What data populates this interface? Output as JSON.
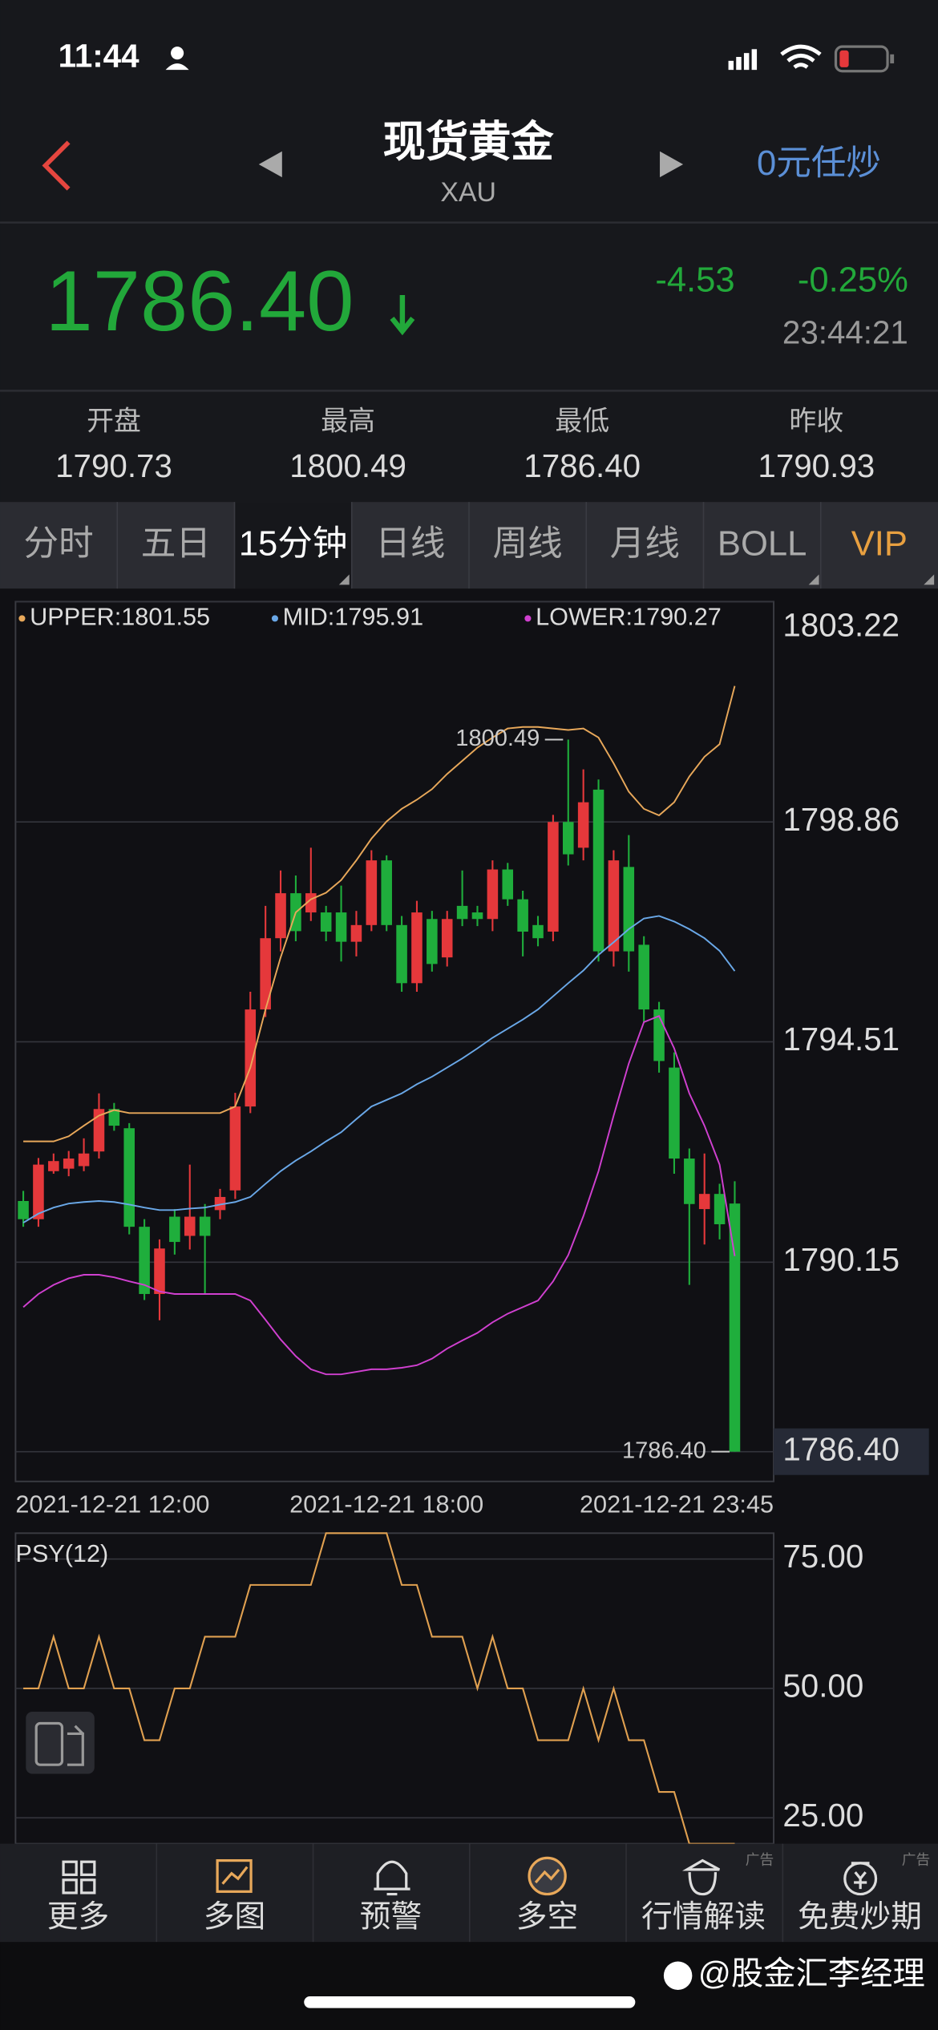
{
  "status_bar": {
    "time": "11:44"
  },
  "header": {
    "title": "现货黄金",
    "subtitle": "XAU",
    "action": "0元任炒"
  },
  "quote": {
    "price": "1786.40",
    "change": "-4.53",
    "change_pct": "-0.25%",
    "time": "23:44:21"
  },
  "stats": [
    {
      "label": "开盘",
      "value": "1790.73"
    },
    {
      "label": "最高",
      "value": "1800.49"
    },
    {
      "label": "最低",
      "value": "1786.40"
    },
    {
      "label": "昨收",
      "value": "1790.93"
    }
  ],
  "tabs": [
    "分时",
    "五日",
    "15分钟",
    "日线",
    "周线",
    "月线",
    "BOLL",
    "VIP"
  ],
  "active_tab": 2,
  "toolbar": [
    {
      "label": "更多"
    },
    {
      "label": "多图"
    },
    {
      "label": "预警"
    },
    {
      "label": "多空"
    },
    {
      "label": "行情解读",
      "badge": "广告"
    },
    {
      "label": "免费炒期",
      "badge": "广告"
    }
  ],
  "watermark": "@股金汇李经理",
  "chart_data": [
    {
      "type": "candlestick",
      "categories": [
        "2021-12-21 12:00",
        null,
        null,
        null,
        null,
        null,
        null,
        null,
        null,
        null,
        null,
        null,
        null,
        null,
        null,
        null,
        null,
        null,
        null,
        null,
        null,
        null,
        null,
        null,
        "2021-12-21 18:00",
        null,
        null,
        null,
        null,
        null,
        null,
        null,
        null,
        null,
        null,
        null,
        null,
        null,
        null,
        null,
        null,
        null,
        null,
        null,
        null,
        null,
        null,
        "2021-12-21 23:45"
      ],
      "open": [
        1791.36,
        1791.0,
        1791.95,
        1792.0,
        1792.05,
        1792.34,
        1793.18,
        1792.8,
        1790.85,
        1789.52,
        1791.05,
        1790.67,
        1791.05,
        1791.18,
        1791.57,
        1793.23,
        1795.15,
        1796.56,
        1797.45,
        1797.07,
        1797.07,
        1797.07,
        1796.49,
        1796.82,
        1798.1,
        1796.82,
        1795.67,
        1796.94,
        1796.18,
        1797.2,
        1797.07,
        1796.94,
        1797.92,
        1797.33,
        1796.82,
        1796.69,
        1798.86,
        1798.35,
        1799.5,
        1796.3,
        1797.97,
        1796.43,
        1795.15,
        1794.0,
        1792.2,
        1791.2,
        1791.5,
        1791.31
      ],
      "high": [
        1791.56,
        1792.21,
        1792.3,
        1792.35,
        1792.6,
        1793.49,
        1793.3,
        1792.9,
        1791.0,
        1790.6,
        1791.2,
        1792.08,
        1791.3,
        1791.6,
        1793.5,
        1795.5,
        1797.2,
        1797.9,
        1797.8,
        1798.35,
        1797.2,
        1797.6,
        1797.1,
        1798.3,
        1798.2,
        1797.0,
        1797.3,
        1797.1,
        1797.1,
        1797.9,
        1797.2,
        1798.1,
        1798.05,
        1797.5,
        1797.0,
        1799.0,
        1800.49,
        1799.9,
        1799.7,
        1798.3,
        1798.6,
        1796.6,
        1795.3,
        1794.3,
        1792.4,
        1792.3,
        1791.7,
        1791.75
      ],
      "low": [
        1790.85,
        1790.85,
        1791.9,
        1791.85,
        1791.95,
        1792.2,
        1792.75,
        1790.7,
        1789.4,
        1789.0,
        1790.3,
        1790.4,
        1789.52,
        1791.0,
        1791.4,
        1793.1,
        1795.0,
        1796.3,
        1796.5,
        1796.9,
        1796.5,
        1796.1,
        1796.2,
        1796.7,
        1796.7,
        1795.5,
        1795.5,
        1795.9,
        1796.0,
        1796.8,
        1796.8,
        1796.7,
        1797.2,
        1796.2,
        1796.4,
        1796.5,
        1798.0,
        1798.1,
        1796.1,
        1796.0,
        1795.9,
        1794.9,
        1793.9,
        1791.9,
        1789.7,
        1790.5,
        1790.6,
        1786.4
      ],
      "close": [
        1791.0,
        1792.08,
        1792.15,
        1792.2,
        1792.3,
        1793.18,
        1792.85,
        1790.85,
        1789.52,
        1790.42,
        1790.55,
        1791.05,
        1790.67,
        1791.44,
        1793.23,
        1795.15,
        1796.56,
        1797.45,
        1796.7,
        1797.45,
        1796.69,
        1796.49,
        1796.82,
        1798.1,
        1796.82,
        1795.67,
        1797.07,
        1796.05,
        1796.94,
        1796.94,
        1796.94,
        1797.92,
        1797.33,
        1796.69,
        1796.56,
        1798.86,
        1798.22,
        1799.25,
        1796.3,
        1798.1,
        1796.3,
        1795.15,
        1794.13,
        1792.2,
        1791.3,
        1791.5,
        1790.9,
        1786.4
      ],
      "up_color": "#e5383b",
      "down_color": "#1fae3c",
      "series": [
        {
          "name": "UPPER:1801.55",
          "color": "#e8a85a",
          "values": [
            1792.54,
            1792.54,
            1792.54,
            1792.64,
            1792.85,
            1793.05,
            1793.16,
            1793.1,
            1793.1,
            1793.1,
            1793.1,
            1793.1,
            1793.1,
            1793.1,
            1793.23,
            1794.0,
            1795.15,
            1796.18,
            1797.07,
            1797.33,
            1797.46,
            1797.71,
            1798.1,
            1798.53,
            1798.87,
            1799.12,
            1799.3,
            1799.51,
            1799.81,
            1800.07,
            1800.33,
            1800.53,
            1800.71,
            1800.74,
            1800.74,
            1800.71,
            1800.68,
            1800.71,
            1800.53,
            1800.02,
            1799.46,
            1799.12,
            1798.99,
            1799.25,
            1799.76,
            1800.15,
            1800.4,
            1801.55
          ]
        },
        {
          "name": "MID:1795.91",
          "color": "#6aa8e8",
          "values": [
            1790.93,
            1791.11,
            1791.23,
            1791.31,
            1791.34,
            1791.36,
            1791.34,
            1791.29,
            1791.23,
            1791.18,
            1791.18,
            1791.21,
            1791.23,
            1791.29,
            1791.34,
            1791.44,
            1791.7,
            1791.95,
            1792.16,
            1792.34,
            1792.54,
            1792.72,
            1792.98,
            1793.23,
            1793.36,
            1793.49,
            1793.67,
            1793.82,
            1794.0,
            1794.18,
            1794.38,
            1794.59,
            1794.77,
            1794.95,
            1795.15,
            1795.41,
            1795.67,
            1795.92,
            1796.23,
            1796.48,
            1796.74,
            1796.95,
            1797.0,
            1796.89,
            1796.74,
            1796.56,
            1796.31,
            1795.91
          ]
        },
        {
          "name": "LOWER:1790.27",
          "color": "#d040d0",
          "values": [
            1789.26,
            1789.52,
            1789.7,
            1789.83,
            1789.9,
            1789.9,
            1789.85,
            1789.77,
            1789.7,
            1789.57,
            1789.52,
            1789.52,
            1789.52,
            1789.52,
            1789.52,
            1789.39,
            1789.01,
            1788.62,
            1788.29,
            1788.03,
            1787.93,
            1787.93,
            1787.98,
            1788.03,
            1788.03,
            1788.06,
            1788.11,
            1788.24,
            1788.44,
            1788.6,
            1788.75,
            1788.96,
            1789.13,
            1789.26,
            1789.39,
            1789.77,
            1790.29,
            1791.06,
            1791.95,
            1793.05,
            1794.08,
            1794.9,
            1795.02,
            1794.38,
            1793.49,
            1792.85,
            1792.08,
            1790.27
          ]
        }
      ],
      "annotations": [
        {
          "value": 1800.49,
          "label": "1800.49"
        },
        {
          "value": 1786.4,
          "label": "1786.40"
        }
      ],
      "ylim": [
        1786.4,
        1803.22
      ],
      "yticks": [
        1803.22,
        1798.86,
        1794.51,
        1790.15,
        {
          "value": 1786.4,
          "label": "1786.40"
        }
      ],
      "grid": true
    },
    {
      "type": "line",
      "title": "PSY(12)",
      "values": [
        50,
        50,
        60,
        50,
        50,
        60,
        50,
        50,
        40,
        40,
        50,
        50,
        60,
        60,
        60,
        70,
        70,
        70,
        70,
        70,
        80,
        80,
        80,
        80,
        80,
        70,
        70,
        60,
        60,
        60,
        50,
        60,
        50,
        50,
        40,
        40,
        40,
        50,
        40,
        50,
        40,
        40,
        30,
        30,
        20,
        20,
        20,
        20
      ],
      "color": "#e0a050",
      "ylim": [
        20,
        80
      ],
      "yticks": [
        {
          "value": 75,
          "label": "75.00"
        },
        {
          "value": 50,
          "label": "50.00"
        },
        {
          "value": 25,
          "label": "25.00"
        }
      ],
      "grid": true
    }
  ]
}
